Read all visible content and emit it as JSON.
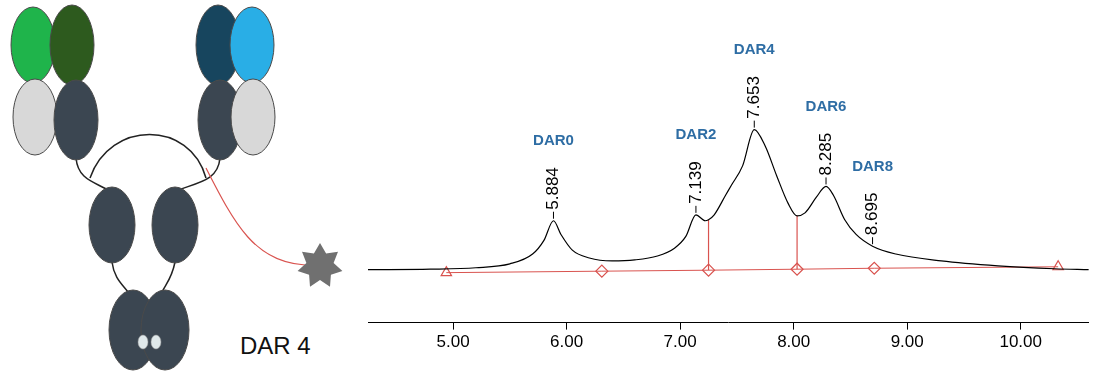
{
  "chart_data": {
    "type": "line",
    "x": [
      4.25,
      4.8,
      5.2,
      5.5,
      5.7,
      5.8,
      5.884,
      5.95,
      6.05,
      6.2,
      6.4,
      6.6,
      6.8,
      6.95,
      7.05,
      7.139,
      7.22,
      7.25,
      7.3,
      7.4,
      7.45,
      7.55,
      7.653,
      7.75,
      7.85,
      7.95,
      8.03,
      8.1,
      8.2,
      8.285,
      8.35,
      8.45,
      8.55,
      8.695,
      8.9,
      9.3,
      9.8,
      10.3,
      10.6
    ],
    "values": [
      54,
      54.5,
      56,
      60,
      70,
      84,
      104,
      90,
      74,
      66,
      63,
      64,
      68,
      76,
      88,
      110,
      104,
      105,
      110,
      130,
      140,
      160,
      197,
      180,
      150,
      122,
      109,
      112,
      128,
      139,
      130,
      105,
      90,
      78,
      70,
      63,
      58,
      55,
      54
    ],
    "color": "#000000",
    "xlim": [
      4.25,
      10.6
    ],
    "xticks": [
      {
        "value": 5,
        "label": "5.00"
      },
      {
        "value": 6,
        "label": "6.00"
      },
      {
        "value": 7,
        "label": "7.00"
      },
      {
        "value": 8,
        "label": "8.00"
      },
      {
        "value": 9,
        "label": "9.00"
      },
      {
        "value": 10,
        "label": "10.00"
      }
    ],
    "ylim": [
      0,
      322
    ],
    "tick_labels": "x",
    "grid": false,
    "legend": false,
    "baseline": {
      "x": [
        4.94,
        6.31,
        7.25,
        8.03,
        8.71,
        10.33
      ],
      "values": [
        51,
        52.5,
        53.5,
        54.5,
        55.5,
        57
      ],
      "markers": [
        "triangle",
        "diamond",
        "diamond",
        "diamond",
        "diamond",
        "triangle"
      ],
      "color": "#d9534f"
    },
    "drop_lines": {
      "x": [
        7.25,
        8.03
      ],
      "color": "#d9534f"
    },
    "peaks": [
      {
        "label": "DAR0",
        "x": 5.884
      },
      {
        "label": "DAR2",
        "x": 7.139
      },
      {
        "label": "DAR4",
        "x": 7.653
      },
      {
        "label": "DAR6",
        "x": 8.285
      },
      {
        "label": "DAR8",
        "x": 8.695
      }
    ],
    "peak_label_color": "#2e6da4"
  },
  "diagram": {
    "label": "DAR 4"
  }
}
